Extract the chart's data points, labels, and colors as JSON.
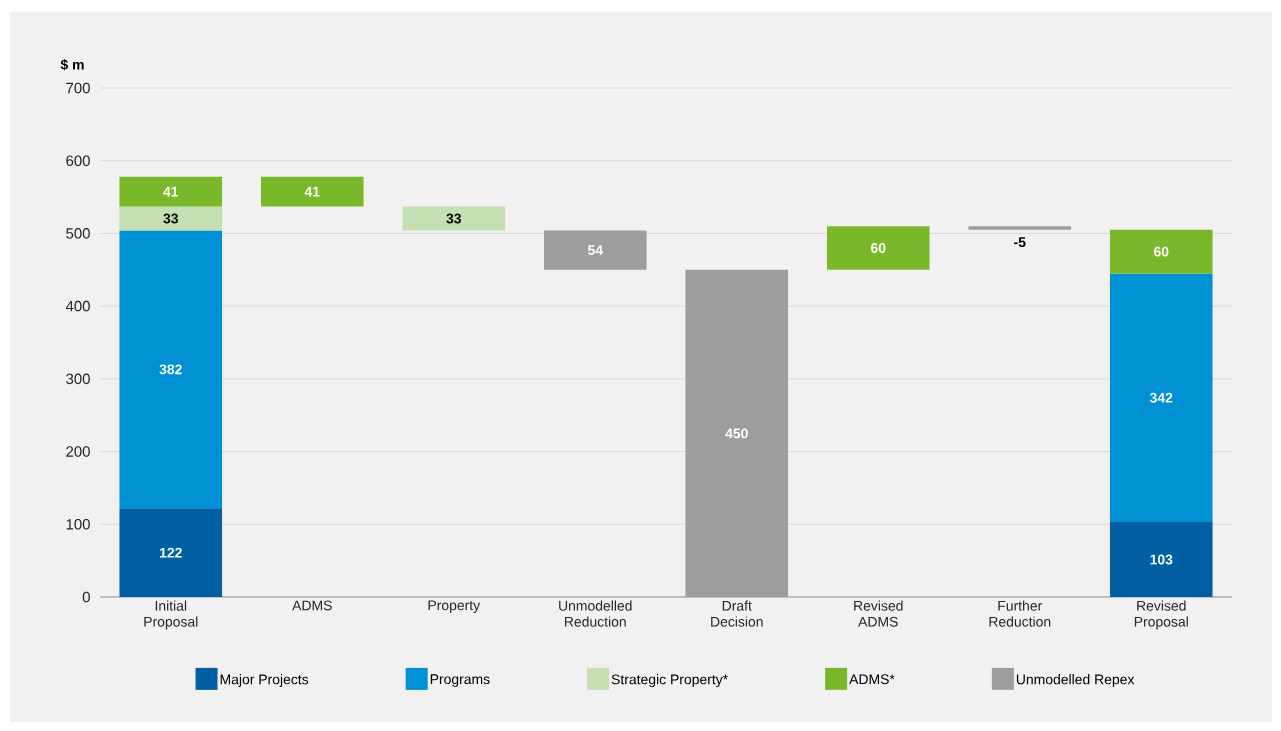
{
  "chart_data": {
    "type": "bar",
    "ylabel": "$ m",
    "categories": [
      "Initial Proposal",
      "ADMS",
      "Property",
      "Unmodelled Reduction",
      "Draft Decision",
      "Revised ADMS",
      "Further Reduction",
      "Revised Proposal"
    ],
    "series": [
      {
        "name": "Major Projects",
        "color": "#0060a3",
        "values": [
          122,
          null,
          null,
          null,
          null,
          null,
          null,
          103
        ],
        "base": [
          0,
          null,
          null,
          null,
          null,
          null,
          null,
          0
        ]
      },
      {
        "name": "Programs",
        "color": "#0090d4",
        "values": [
          382,
          null,
          null,
          null,
          null,
          null,
          null,
          342
        ],
        "base": [
          122,
          null,
          null,
          null,
          null,
          null,
          null,
          103
        ]
      },
      {
        "name": "Strategic Property*",
        "color": "#c5e0b3",
        "values": [
          33,
          null,
          33,
          null,
          null,
          null,
          null,
          null
        ],
        "base": [
          504,
          null,
          504,
          null,
          null,
          null,
          null,
          null
        ]
      },
      {
        "name": "ADMS*",
        "color": "#78b82a",
        "values": [
          41,
          41,
          null,
          null,
          null,
          60,
          null,
          60
        ],
        "base": [
          537,
          537,
          null,
          null,
          null,
          450,
          null,
          445
        ]
      },
      {
        "name": "Unmodelled Repex",
        "color": "#9d9d9d",
        "values": [
          null,
          null,
          null,
          54,
          450,
          null,
          -5,
          null
        ],
        "base": [
          null,
          null,
          null,
          450,
          0,
          null,
          510,
          null
        ]
      }
    ],
    "ylim": [
      0,
      700
    ],
    "yticks": [
      0,
      100,
      200,
      300,
      400,
      500,
      600,
      700
    ],
    "grid": "y",
    "legend": "bottom",
    "data_labels": true
  }
}
